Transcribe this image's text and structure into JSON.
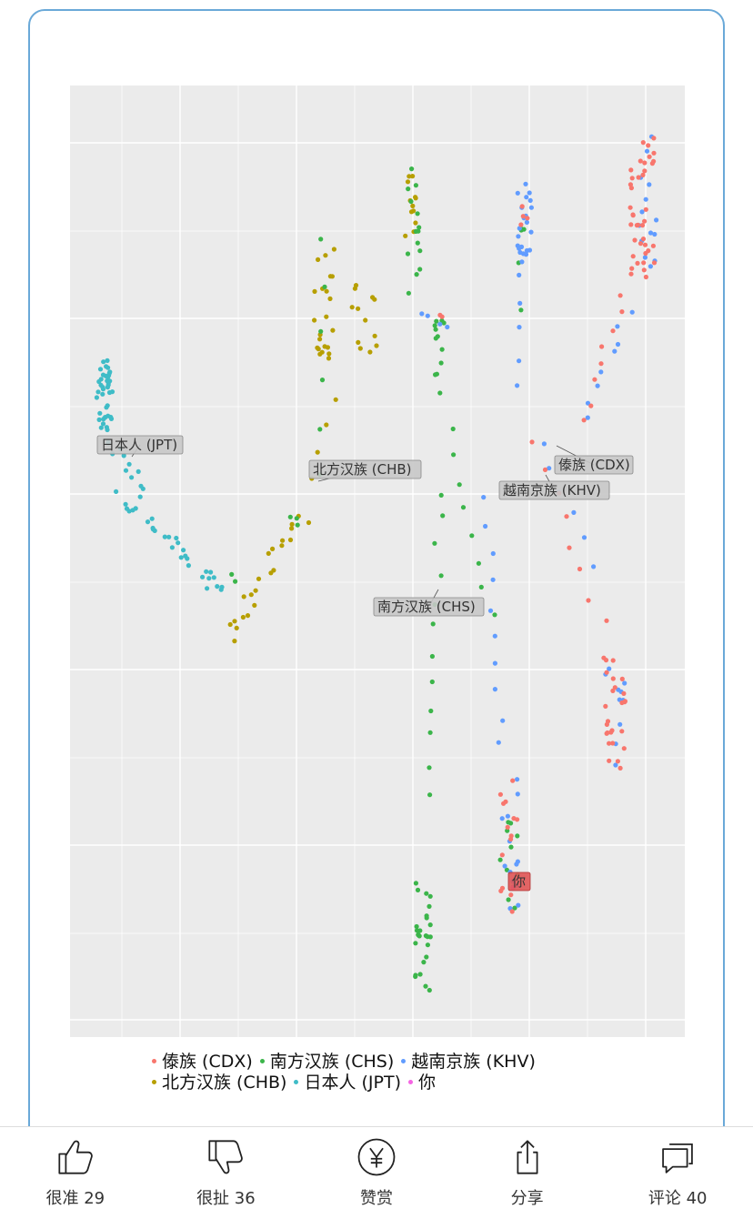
{
  "chart_data": {
    "type": "scatter",
    "title": "",
    "xlabel": "",
    "ylabel": "",
    "grid": true,
    "legend_placement": "bottom",
    "series": [
      {
        "name": "傣族 (CDX)",
        "color": "#f8766d"
      },
      {
        "name": "南方汉族 (CHS)",
        "color": "#3bb54a"
      },
      {
        "name": "越南京族 (KHV)",
        "color": "#619cff"
      },
      {
        "name": "北方汉族 (CHB)",
        "color": "#b79f00"
      },
      {
        "name": "日本人 (JPT)",
        "color": "#3fbcc7"
      },
      {
        "name": "你",
        "color": "#f564e3"
      }
    ],
    "annotations": [
      {
        "text": "日本人 (JPT)",
        "series": "日本人 (JPT)"
      },
      {
        "text": "北方汉族 (CHB)",
        "series": "北方汉族 (CHB)"
      },
      {
        "text": "傣族 (CDX)",
        "series": "傣族 (CDX)"
      },
      {
        "text": "越南京族 (KHV)",
        "series": "越南京族 (KHV)"
      },
      {
        "text": "南方汉族 (CHS)",
        "series": "南方汉族 (CHS)"
      },
      {
        "text": "你",
        "series": "你",
        "highlight_color": "#e05555"
      }
    ],
    "legend_rows": [
      [
        "傣族 (CDX)",
        "南方汉族 (CHS)",
        "越南京族 (KHV)"
      ],
      [
        "北方汉族 (CHB)",
        "日本人 (JPT)",
        "你"
      ]
    ]
  },
  "actions": [
    {
      "icon": "thumbs-up-icon",
      "label": "很准 29"
    },
    {
      "icon": "thumbs-down-icon",
      "label": "很扯 36"
    },
    {
      "icon": "yen-coin-icon",
      "label": "赞赏"
    },
    {
      "icon": "share-icon",
      "label": "分享"
    },
    {
      "icon": "comment-icon",
      "label": "评论 40"
    }
  ]
}
